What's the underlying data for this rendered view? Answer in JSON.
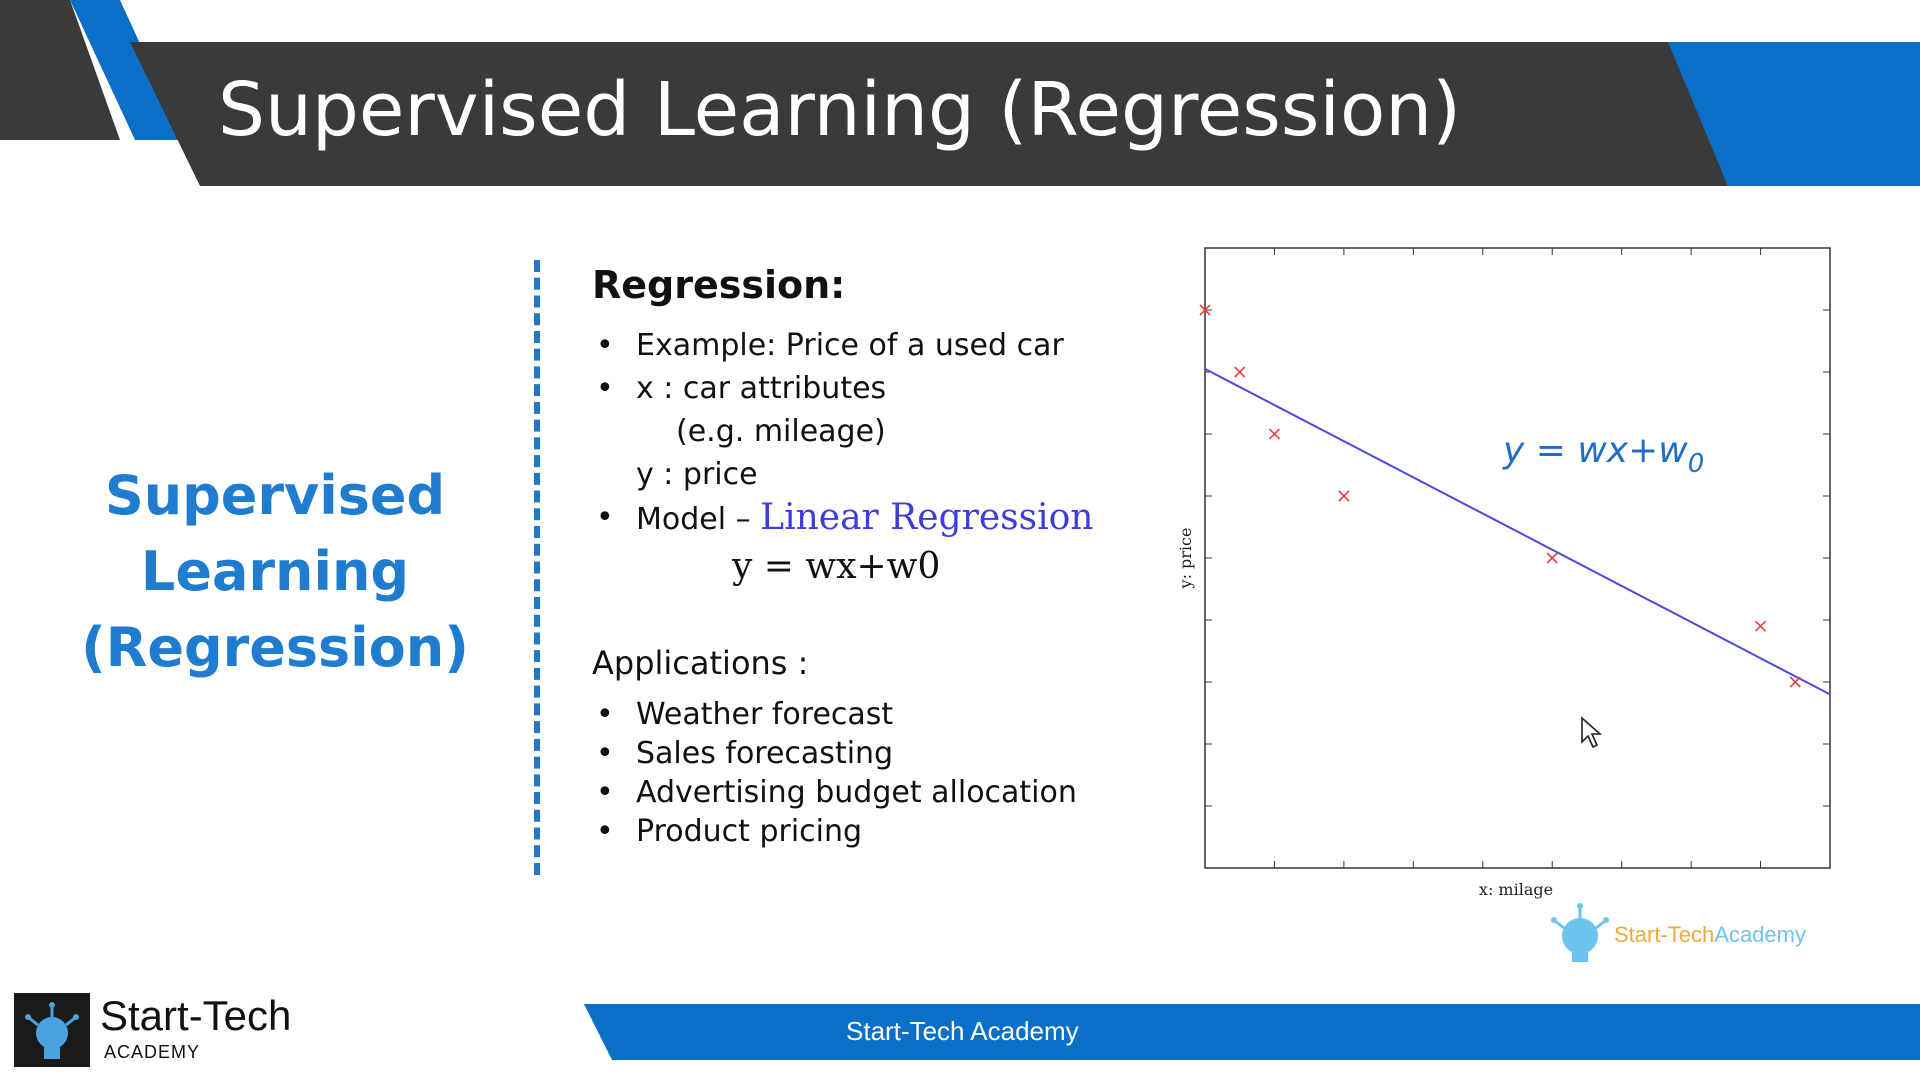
{
  "header": {
    "title": "Supervised Learning (Regression)"
  },
  "side_title": {
    "lines": [
      "Supervised",
      "Learning",
      "(Regression)"
    ]
  },
  "content": {
    "heading": "Regression:",
    "bullet_example": "Example: Price of a used car",
    "bullet_x": "x : car attributes",
    "x_detail": "(e.g. mileage)",
    "y_line": "y : price",
    "model_prefix": "Model – ",
    "model_name": "Linear Regression",
    "formula": "y = wx+w0",
    "applications_heading": "Applications :",
    "applications": [
      "Weather forecast",
      "Sales forecasting",
      "Advertising budget allocation",
      "Product pricing"
    ]
  },
  "chart_data": {
    "type": "scatter",
    "xlabel": "x: milage",
    "ylabel": "y: price",
    "annotation": "y = wx+w",
    "annotation_subscript": "0",
    "xlim": [
      0,
      9
    ],
    "ylim": [
      0,
      10
    ],
    "points": [
      {
        "x": 0.0,
        "y": 9.0
      },
      {
        "x": 0.5,
        "y": 8.0
      },
      {
        "x": 1.0,
        "y": 7.0
      },
      {
        "x": 2.0,
        "y": 6.0
      },
      {
        "x": 5.0,
        "y": 5.0
      },
      {
        "x": 8.0,
        "y": 3.9
      },
      {
        "x": 8.5,
        "y": 3.0
      }
    ],
    "fit_line": [
      {
        "x": 0.0,
        "y": 8.05
      },
      {
        "x": 9.0,
        "y": 2.8
      }
    ],
    "point_color": "#e8413e",
    "line_color": "#4a4ae0",
    "annotation_color": "#1f6fc6",
    "grid": false
  },
  "watermark": {
    "part1": "Start-Tech",
    "part2": "Academy"
  },
  "footer": {
    "text": "Start-Tech Academy"
  },
  "logo": {
    "name": "Start-Tech",
    "sub": "ACADEMY"
  },
  "colors": {
    "header_dark": "#3a3a3a",
    "accent_blue": "#0a6fc7",
    "title_blue": "#1f7ccf"
  }
}
